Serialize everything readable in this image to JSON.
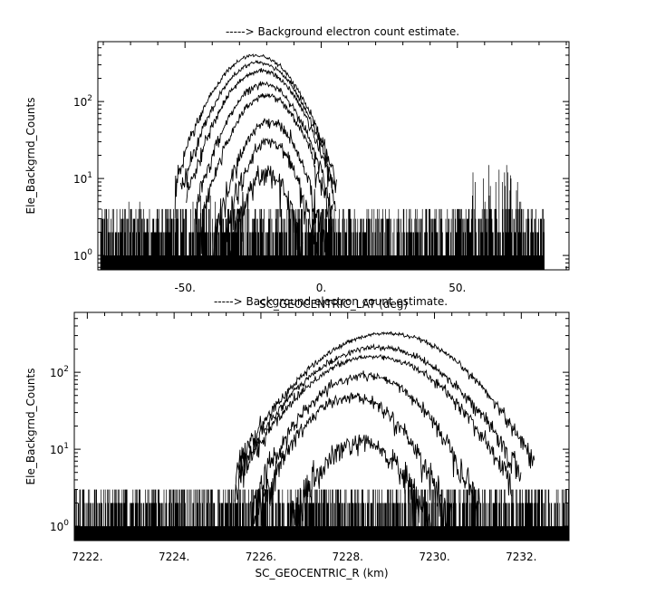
{
  "chart_data": [
    {
      "type": "line",
      "title": "-----> Background electron count estimate.",
      "xlabel": "SC_GEOCENTRIC_LAT (deg)",
      "ylabel": "Ele_Backgrnd_Counts",
      "xlim": [
        -82,
        91
      ],
      "ylim": [
        0.65,
        600
      ],
      "yscale": "log",
      "x_ticks": [
        -50,
        0,
        50
      ],
      "x_tick_labels": [
        "-50.",
        "0.",
        "50."
      ],
      "y_ticks": [
        1,
        10,
        100
      ],
      "y_tick_labels": [
        "10^0",
        "10^1",
        "10^2"
      ],
      "noise_range": [
        -81,
        82
      ],
      "noise_counts": [
        1,
        2,
        3,
        4
      ],
      "noise_bursts": [
        {
          "x": [
            -80,
            -64
          ],
          "max": 5
        },
        {
          "x": [
            55,
            75
          ],
          "max": 15
        },
        {
          "x": [
            3,
            12
          ],
          "max": 3
        },
        {
          "x": [
            -48,
            -36
          ],
          "max": 6
        }
      ],
      "series": [
        {
          "center": -24,
          "peak": 400,
          "width": 27
        },
        {
          "center": -23,
          "peak": 320,
          "width": 26
        },
        {
          "center": -22,
          "peak": 250,
          "width": 25
        },
        {
          "center": -21,
          "peak": 170,
          "width": 23
        },
        {
          "center": -20,
          "peak": 120,
          "width": 22
        },
        {
          "center": -19,
          "peak": 55,
          "width": 19
        },
        {
          "center": -19,
          "peak": 30,
          "width": 17
        },
        {
          "center": -20,
          "peak": 12,
          "width": 15
        }
      ]
    },
    {
      "type": "line",
      "title": "-----> Background electron count estimate.",
      "xlabel": "SC_GEOCENTRIC_R (km)",
      "ylabel": "Ele_Backgrnd_Counts",
      "xlim": [
        7221.7,
        7233.1
      ],
      "ylim": [
        0.65,
        600
      ],
      "yscale": "log",
      "x_ticks": [
        7222,
        7224,
        7226,
        7228,
        7230,
        7232
      ],
      "x_tick_labels": [
        "7222.",
        "7224.",
        "7226.",
        "7228.",
        "7230.",
        "7232."
      ],
      "y_ticks": [
        1,
        10,
        100
      ],
      "y_tick_labels": [
        "10^0",
        "10^1",
        "10^2"
      ],
      "noise_range": [
        7221.7,
        7233.1
      ],
      "noise_counts": [
        1,
        2,
        3
      ],
      "noise_bursts": [],
      "series": [
        {
          "center": 7228.9,
          "peak": 320,
          "width": 3.1
        },
        {
          "center": 7228.7,
          "peak": 210,
          "width": 3.0
        },
        {
          "center": 7228.6,
          "peak": 160,
          "width": 2.9
        },
        {
          "center": 7228.4,
          "peak": 90,
          "width": 2.4
        },
        {
          "center": 7228.1,
          "peak": 48,
          "width": 2.1
        },
        {
          "center": 7228.3,
          "peak": 12,
          "width": 1.8
        }
      ]
    }
  ]
}
